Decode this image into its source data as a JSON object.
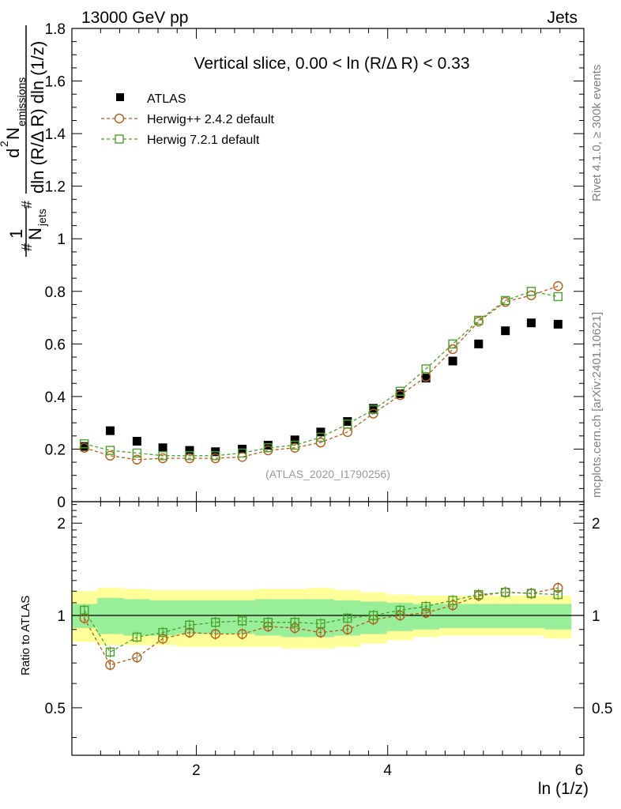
{
  "header": {
    "left": "13000 GeV pp",
    "right": "Jets"
  },
  "side": {
    "rivet": "Rivet 4.1.0, ≥ 300k events",
    "mcplots": "mcplots.cern.ch [arXiv:2401.10621]"
  },
  "colors": {
    "atlas": "#000000",
    "herwig_old": "#b25e1a",
    "herwig_new": "#4aa02c",
    "band_inner": "#99ee99",
    "band_outer": "#ffff99"
  },
  "chart_data": [
    {
      "type": "scatter",
      "title": "Vertical slice, 0.00 < ln (R/Δ R) < 0.33",
      "xlabel": "ln (1/z)",
      "ylabel": "1/N_jets d²N_emissions / dln(R/ΔR) dln(1/z)",
      "xlim": [
        0.7,
        6.05
      ],
      "ylim": [
        0,
        1.8
      ],
      "y_ticks": [
        "0",
        "0.2",
        "0.4",
        "0.6",
        "0.8",
        "1",
        "1.2",
        "1.4",
        "1.6",
        "1.8"
      ],
      "y_tick_values": [
        0,
        0.2,
        0.4,
        0.6,
        0.8,
        1.0,
        1.2,
        1.4,
        1.6,
        1.8
      ],
      "watermark": "(ATLAS_2020_I1790256)",
      "x": [
        0.83,
        1.1,
        1.38,
        1.65,
        1.93,
        2.2,
        2.48,
        2.75,
        3.03,
        3.3,
        3.58,
        3.85,
        4.13,
        4.4,
        4.68,
        4.95,
        5.23,
        5.5,
        5.78
      ],
      "series": [
        {
          "name": "ATLAS",
          "marker": "filled-square",
          "values": [
            0.21,
            0.27,
            0.23,
            0.205,
            0.195,
            0.19,
            0.2,
            0.215,
            0.235,
            0.265,
            0.305,
            0.355,
            0.41,
            0.47,
            0.535,
            0.6,
            0.65,
            0.68,
            0.675
          ]
        },
        {
          "name": "Herwig++ 2.4.2 default",
          "marker": "open-circle",
          "values": [
            0.205,
            0.175,
            0.16,
            0.165,
            0.165,
            0.165,
            0.17,
            0.195,
            0.205,
            0.225,
            0.265,
            0.335,
            0.405,
            0.475,
            0.58,
            0.685,
            0.76,
            0.785,
            0.82
          ]
        },
        {
          "name": "Herwig 7.2.1 default",
          "marker": "open-square",
          "values": [
            0.22,
            0.195,
            0.185,
            0.175,
            0.175,
            0.175,
            0.185,
            0.205,
            0.215,
            0.245,
            0.295,
            0.35,
            0.42,
            0.505,
            0.6,
            0.69,
            0.765,
            0.8,
            0.78
          ]
        }
      ]
    },
    {
      "type": "ratio",
      "ylabel": "Ratio to ATLAS",
      "xlabel": "ln (1/z)",
      "xlim": [
        0.7,
        6.05
      ],
      "ylim": [
        0.35,
        2.35
      ],
      "y_ticks": [
        "0.5",
        "1",
        "2"
      ],
      "y_tick_values": [
        0.5,
        1,
        2
      ],
      "x_ticks": [
        "2",
        "4",
        "6"
      ],
      "x_tick_values": [
        2,
        4,
        6
      ],
      "x": [
        0.83,
        1.1,
        1.38,
        1.65,
        1.93,
        2.2,
        2.48,
        2.75,
        3.03,
        3.3,
        3.58,
        3.85,
        4.13,
        4.4,
        4.68,
        4.95,
        5.23,
        5.5,
        5.78
      ],
      "band_inner": {
        "lo": [
          0.91,
          0.87,
          0.86,
          0.86,
          0.87,
          0.87,
          0.87,
          0.86,
          0.85,
          0.85,
          0.86,
          0.87,
          0.89,
          0.9,
          0.91,
          0.91,
          0.91,
          0.91,
          0.9
        ],
        "hi": [
          1.09,
          1.14,
          1.13,
          1.12,
          1.12,
          1.12,
          1.12,
          1.13,
          1.13,
          1.13,
          1.12,
          1.11,
          1.1,
          1.09,
          1.09,
          1.09,
          1.09,
          1.09,
          1.09
        ]
      },
      "band_outer": {
        "lo": [
          0.82,
          0.8,
          0.8,
          0.8,
          0.79,
          0.79,
          0.79,
          0.79,
          0.78,
          0.78,
          0.79,
          0.81,
          0.83,
          0.85,
          0.86,
          0.86,
          0.86,
          0.86,
          0.84
        ],
        "hi": [
          1.2,
          1.23,
          1.22,
          1.21,
          1.21,
          1.21,
          1.21,
          1.22,
          1.22,
          1.23,
          1.21,
          1.19,
          1.17,
          1.16,
          1.16,
          1.16,
          1.16,
          1.16,
          1.16
        ]
      },
      "series": [
        {
          "name": "Herwig++ 2.4.2 default",
          "marker": "open-circle",
          "values": [
            0.98,
            0.69,
            0.73,
            0.84,
            0.88,
            0.87,
            0.87,
            0.92,
            0.91,
            0.88,
            0.9,
            0.97,
            1.0,
            1.02,
            1.08,
            1.16,
            1.19,
            1.18,
            1.23
          ]
        },
        {
          "name": "Herwig 7.2.1 default",
          "marker": "open-square",
          "values": [
            1.04,
            0.76,
            0.85,
            0.88,
            0.93,
            0.95,
            0.96,
            0.95,
            0.95,
            0.94,
            0.98,
            1.0,
            1.04,
            1.07,
            1.12,
            1.17,
            1.19,
            1.18,
            1.17
          ]
        }
      ]
    }
  ]
}
